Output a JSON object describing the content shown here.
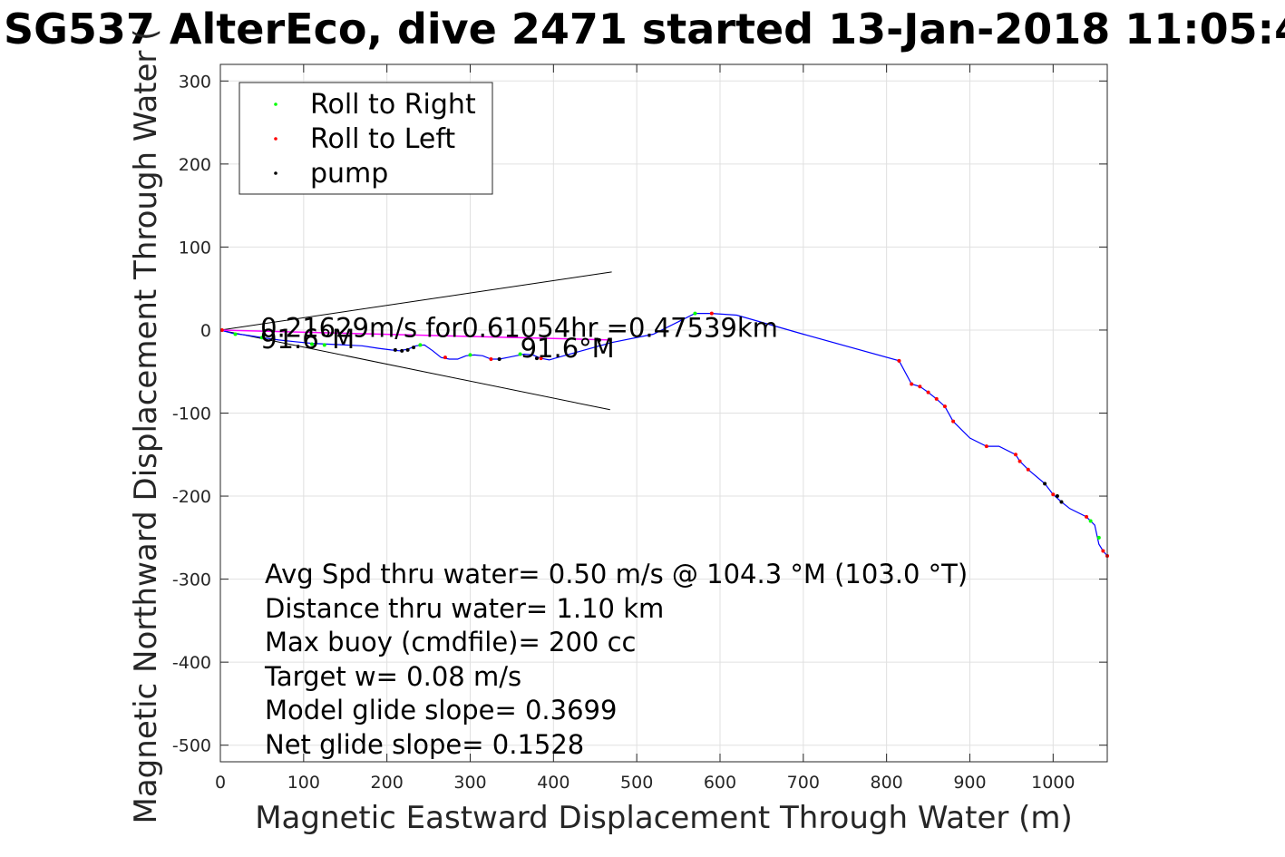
{
  "chart_data": {
    "type": "line",
    "title": "SG537 AlterEco, dive 2471 started 13-Jan-2018 11:05:4",
    "xlabel": "Magnetic Eastward Displacement Through Water (m)",
    "ylabel": "Magnetic Northward Displacement Through Water (",
    "xlim": [
      0,
      1065
    ],
    "ylim": [
      -520,
      320
    ],
    "xticks": [
      0,
      100,
      200,
      300,
      400,
      500,
      600,
      700,
      800,
      900,
      1000
    ],
    "yticks": [
      300,
      200,
      100,
      0,
      -100,
      -200,
      -300,
      -400,
      -500
    ],
    "xtick_labels": [
      "0",
      "100",
      "200",
      "300",
      "400",
      "500",
      "600",
      "700",
      "800",
      "900",
      "1000"
    ],
    "ytick_labels": [
      "300",
      "200",
      "100",
      "0",
      "-100",
      "-200",
      "-300",
      "-400",
      "-500"
    ],
    "grid": true,
    "legend_position": "top-left",
    "legend": [
      {
        "label": "Roll to Right",
        "color": "#00ff00"
      },
      {
        "label": "Roll to Left",
        "color": "#ff0000"
      },
      {
        "label": "pump",
        "color": "#000000"
      }
    ],
    "colors": {
      "track": "#0000ff",
      "current_vector": "#ff00ff",
      "cone": "#000000"
    },
    "track": {
      "x": [
        0,
        15,
        30,
        50,
        70,
        90,
        110,
        130,
        150,
        170,
        190,
        205,
        215,
        225,
        235,
        245,
        255,
        265,
        275,
        285,
        295,
        305,
        315,
        325,
        335,
        345,
        355,
        365,
        375,
        385,
        395,
        405,
        430,
        470,
        520,
        570,
        590,
        620,
        700,
        815,
        830,
        840,
        850,
        860,
        870,
        880,
        900,
        920,
        935,
        955,
        960,
        970,
        990,
        1000,
        1010,
        1020,
        1040,
        1050,
        1055,
        1060,
        1065
      ],
      "y": [
        0,
        -4,
        -6,
        -9,
        -12,
        -14,
        -16,
        -17,
        -18,
        -19,
        -22,
        -24,
        -25,
        -23,
        -19,
        -18,
        -25,
        -33,
        -35,
        -35,
        -31,
        -30,
        -31,
        -35,
        -35,
        -33,
        -31,
        -29,
        -30,
        -34,
        -36,
        -33,
        -26,
        -15,
        -5,
        20,
        20,
        18,
        -5,
        -37,
        -65,
        -68,
        -75,
        -83,
        -92,
        -110,
        -130,
        -140,
        -140,
        -150,
        -158,
        -168,
        -185,
        -198,
        -207,
        -215,
        -225,
        -235,
        -258,
        -266,
        -272
      ]
    },
    "roll_right_points": {
      "x": [
        18,
        50,
        110,
        125,
        240,
        300,
        360,
        570,
        1045,
        1055
      ],
      "y": [
        -5,
        -9,
        -17,
        -18,
        -18,
        -30,
        -29,
        20,
        -230,
        -250
      ]
    },
    "roll_left_points": {
      "x": [
        2,
        270,
        325,
        385,
        590,
        815,
        830,
        840,
        850,
        860,
        870,
        880,
        920,
        955,
        960,
        970,
        1000,
        1040,
        1060,
        1065
      ],
      "y": [
        0,
        -33,
        -35,
        -34,
        20,
        -37,
        -65,
        -68,
        -75,
        -83,
        -92,
        -110,
        -140,
        -150,
        -158,
        -168,
        -198,
        -225,
        -266,
        -272
      ]
    },
    "pump_points": {
      "x": [
        210,
        218,
        225,
        232,
        335,
        380,
        455,
        990,
        1005,
        1010
      ],
      "y": [
        -24,
        -25,
        -24,
        -21,
        -35,
        -34,
        -12,
        -185,
        -200,
        -207
      ]
    },
    "current_vector": {
      "x": [
        0,
        470
      ],
      "y": [
        0,
        -12
      ]
    },
    "cone_lines": [
      {
        "x": [
          0,
          470
        ],
        "y": [
          0,
          70
        ]
      },
      {
        "x": [
          0,
          468
        ],
        "y": [
          0,
          -96
        ]
      }
    ],
    "annotations": [
      {
        "text": "0.21629m/s for0.61054hr =0.47539km",
        "x": 48,
        "y": -8
      },
      {
        "text": "91.6°M",
        "x": 48,
        "y": -22
      },
      {
        "text": "91.6°M",
        "x": 360,
        "y": -33
      }
    ],
    "stats": [
      "Avg Spd thru water=  0.50 m/s @ 104.3 °M (103.0 °T)",
      "Distance thru water=  1.10 km",
      "Max buoy (cmdfile)= 200 cc",
      "Target w= 0.08 m/s",
      "Model glide slope= 0.3699",
      "Net glide slope= 0.1528"
    ]
  }
}
